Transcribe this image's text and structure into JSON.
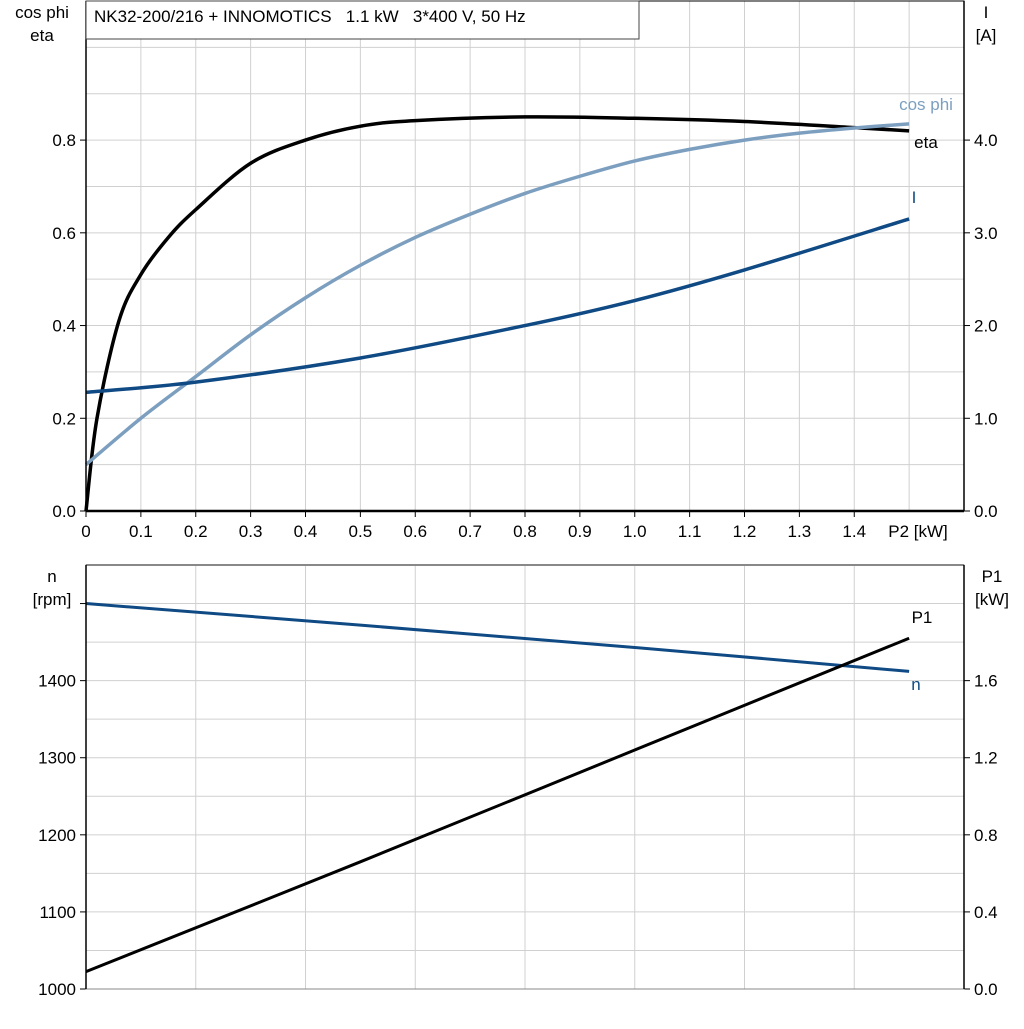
{
  "title": "NK32-200/216 + INNOMOTICS   1.1 kW   3*400 V, 50 Hz",
  "colors": {
    "eta": "#000000",
    "cosphi": "#7c9fc0",
    "I": "#0f4a84",
    "n": "#0f4a84",
    "P1": "#000000",
    "grid": "#d0d0d0"
  },
  "chart_data": [
    {
      "type": "line",
      "xlabel": "P2 [kW]",
      "xlim": [
        0,
        1.6
      ],
      "xticks": [
        "0",
        "0.1",
        "0.2",
        "0.3",
        "0.4",
        "0.5",
        "0.6",
        "0.7",
        "0.8",
        "0.9",
        "1.0",
        "1.1",
        "1.2",
        "1.3",
        "1.4"
      ],
      "ylabel_left": [
        "cos phi",
        "eta"
      ],
      "ylim_left": [
        0,
        1.1
      ],
      "yticks_left": [
        "0.0",
        "0.2",
        "0.4",
        "0.6",
        "0.8"
      ],
      "ylabel_right": [
        "I",
        "[A]"
      ],
      "ylim_right": [
        0,
        5.5
      ],
      "yticks_right": [
        "0.0",
        "1.0",
        "2.0",
        "3.0",
        "4.0"
      ],
      "grid": true,
      "series": [
        {
          "name": "eta",
          "axis": "left",
          "x": [
            0,
            0.02,
            0.06,
            0.1,
            0.15,
            0.2,
            0.3,
            0.4,
            0.5,
            0.6,
            0.8,
            1.0,
            1.2,
            1.4,
            1.5
          ],
          "y": [
            0,
            0.2,
            0.41,
            0.51,
            0.59,
            0.65,
            0.75,
            0.8,
            0.83,
            0.842,
            0.85,
            0.847,
            0.84,
            0.827,
            0.82
          ]
        },
        {
          "name": "cos phi",
          "axis": "left",
          "x": [
            0,
            0.1,
            0.2,
            0.3,
            0.4,
            0.5,
            0.6,
            0.7,
            0.8,
            0.9,
            1.0,
            1.1,
            1.2,
            1.3,
            1.4,
            1.5
          ],
          "y": [
            0.1,
            0.2,
            0.29,
            0.38,
            0.46,
            0.53,
            0.59,
            0.64,
            0.685,
            0.722,
            0.755,
            0.78,
            0.8,
            0.815,
            0.826,
            0.835
          ]
        },
        {
          "name": "I",
          "axis": "right",
          "x": [
            0,
            0.2,
            0.5,
            0.8,
            1.0,
            1.2,
            1.5
          ],
          "y": [
            1.28,
            1.39,
            1.65,
            2.0,
            2.27,
            2.6,
            3.15
          ]
        }
      ]
    },
    {
      "type": "line",
      "xlim": [
        0,
        1.6
      ],
      "ylabel_left": [
        "n",
        "[rpm]"
      ],
      "ylim_left": [
        1000,
        1550
      ],
      "yticks_left": [
        "1000",
        "1100",
        "1200",
        "1300",
        "1400"
      ],
      "ylabel_right": [
        "P1",
        "[kW]"
      ],
      "ylim_right": [
        0,
        2.2
      ],
      "yticks_right": [
        "0.0",
        "0.4",
        "0.8",
        "1.2",
        "1.6"
      ],
      "grid": true,
      "series": [
        {
          "name": "n",
          "axis": "left",
          "x": [
            0,
            0.5,
            1.0,
            1.5
          ],
          "y": [
            1500,
            1472,
            1443,
            1412
          ]
        },
        {
          "name": "P1",
          "axis": "right",
          "x": [
            0,
            0.5,
            1.0,
            1.5
          ],
          "y": [
            0.09,
            0.66,
            1.24,
            1.82
          ]
        }
      ]
    }
  ]
}
